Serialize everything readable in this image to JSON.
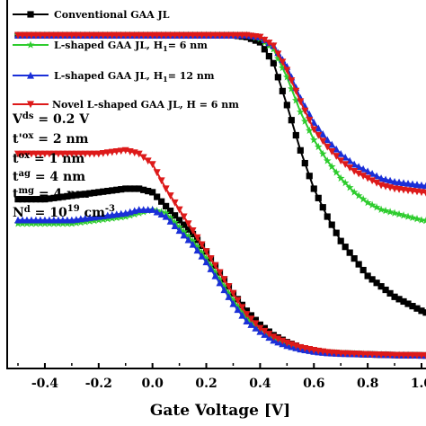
{
  "chart_data": {
    "type": "line",
    "xlabel": "Gate Voltage [V]",
    "ylabel": "",
    "xlim": [
      -0.52,
      1.1
    ],
    "x_ticks": [
      "-0.4",
      "-0.2",
      "0.0",
      "0.2",
      "0.4",
      "0.6",
      "0.8",
      "1.0"
    ],
    "x_tick_values": [
      -0.4,
      -0.2,
      0.0,
      0.2,
      0.4,
      0.6,
      0.8,
      1.0
    ],
    "legend_position": "top-left",
    "annotation_lines": [
      {
        "base": "V",
        "sub": "ds",
        "sup": "",
        "tail": " = 0.2 V"
      },
      {
        "base": "t'",
        "sub": "ox",
        "sup": "",
        "tail": " = 2 nm"
      },
      {
        "base": "t",
        "sub": "ox",
        "sup": "",
        "tail": " = 1 nm"
      },
      {
        "base": "t",
        "sub": "ag",
        "sup": "",
        "tail": " = 4 nm"
      },
      {
        "base": "t",
        "sub": "mg",
        "sup": "",
        "tail": " = 4 nm"
      },
      {
        "base": "N",
        "sub": "d",
        "sup": "19",
        "tail": " = 10",
        "unit": "  cm",
        "unit_sup": "-3"
      }
    ],
    "series": [
      {
        "name": "Conventional GAA JL",
        "color": "#000000",
        "marker": "square",
        "curves": [
          {
            "x": [
              -0.5,
              -0.4,
              -0.3,
              -0.2,
              -0.1,
              -0.05,
              0.0,
              0.05,
              0.1,
              0.15,
              0.2,
              0.25,
              0.3,
              0.35,
              0.4,
              0.45,
              0.5,
              0.55,
              0.6,
              0.65,
              0.7,
              0.8,
              0.9,
              1.0,
              1.1
            ],
            "y": [
              0.47,
              0.47,
              0.48,
              0.49,
              0.5,
              0.5,
              0.49,
              0.45,
              0.41,
              0.37,
              0.32,
              0.26,
              0.2,
              0.15,
              0.11,
              0.08,
              0.06,
              0.045,
              0.035,
              0.03,
              0.028,
              0.025,
              0.023,
              0.022,
              0.02
            ]
          },
          {
            "x": [
              -0.5,
              -0.4,
              -0.3,
              -0.2,
              -0.1,
              0.0,
              0.1,
              0.2,
              0.3,
              0.35,
              0.4,
              0.45,
              0.5,
              0.55,
              0.6,
              0.65,
              0.7,
              0.75,
              0.8,
              0.85,
              0.9,
              0.95,
              1.0,
              1.1
            ],
            "y": [
              0.94,
              0.94,
              0.94,
              0.94,
              0.94,
              0.94,
              0.94,
              0.94,
              0.94,
              0.935,
              0.92,
              0.86,
              0.74,
              0.61,
              0.5,
              0.42,
              0.35,
              0.3,
              0.25,
              0.22,
              0.19,
              0.17,
              0.15,
              0.12
            ]
          }
        ]
      },
      {
        "name": "L-shaped GAA JL, H1 = 6 nm",
        "legend_base": "L-shaped GAA JL, H",
        "legend_sub": "1",
        "legend_tail": "= 6 nm",
        "color": "#2ecc2e",
        "marker": "star",
        "curves": [
          {
            "x": [
              -0.5,
              -0.4,
              -0.3,
              -0.2,
              -0.1,
              -0.05,
              0.0,
              0.05,
              0.1,
              0.15,
              0.2,
              0.25,
              0.3,
              0.35,
              0.4,
              0.45,
              0.5,
              0.55,
              0.6,
              0.65,
              0.7,
              0.8,
              0.9,
              1.0,
              1.1
            ],
            "y": [
              0.4,
              0.4,
              0.4,
              0.41,
              0.42,
              0.43,
              0.44,
              0.43,
              0.39,
              0.35,
              0.3,
              0.24,
              0.18,
              0.13,
              0.09,
              0.07,
              0.05,
              0.04,
              0.035,
              0.03,
              0.028,
              0.025,
              0.023,
              0.022,
              0.021
            ]
          },
          {
            "x": [
              -0.5,
              -0.4,
              -0.3,
              -0.2,
              -0.1,
              0.0,
              0.1,
              0.2,
              0.3,
              0.35,
              0.4,
              0.45,
              0.5,
              0.55,
              0.6,
              0.65,
              0.7,
              0.75,
              0.8,
              0.85,
              0.9,
              0.95,
              1.0,
              1.1
            ],
            "y": [
              0.94,
              0.94,
              0.94,
              0.94,
              0.94,
              0.94,
              0.94,
              0.94,
              0.94,
              0.94,
              0.93,
              0.9,
              0.82,
              0.72,
              0.64,
              0.58,
              0.53,
              0.49,
              0.46,
              0.44,
              0.43,
              0.42,
              0.41,
              0.4
            ]
          }
        ]
      },
      {
        "name": "L-shaped GAA JL, H1 = 12 nm",
        "legend_base": "L-shaped GAA JL, H",
        "legend_sub": "1",
        "legend_tail": "= 12 nm",
        "color": "#1a2fd8",
        "marker": "triangle-up",
        "curves": [
          {
            "x": [
              -0.5,
              -0.4,
              -0.3,
              -0.2,
              -0.1,
              -0.05,
              0.0,
              0.05,
              0.1,
              0.15,
              0.2,
              0.25,
              0.3,
              0.35,
              0.4,
              0.45,
              0.5,
              0.55,
              0.6,
              0.65,
              0.7,
              0.8,
              0.9,
              1.0,
              1.1
            ],
            "y": [
              0.41,
              0.41,
              0.41,
              0.42,
              0.43,
              0.44,
              0.44,
              0.42,
              0.38,
              0.34,
              0.29,
              0.23,
              0.17,
              0.12,
              0.09,
              0.065,
              0.05,
              0.04,
              0.033,
              0.029,
              0.027,
              0.025,
              0.023,
              0.022,
              0.021
            ]
          },
          {
            "x": [
              -0.5,
              -0.4,
              -0.3,
              -0.2,
              -0.1,
              0.0,
              0.1,
              0.2,
              0.3,
              0.35,
              0.4,
              0.45,
              0.5,
              0.55,
              0.6,
              0.65,
              0.7,
              0.75,
              0.8,
              0.85,
              0.9,
              0.95,
              1.0,
              1.1
            ],
            "y": [
              0.94,
              0.94,
              0.94,
              0.94,
              0.94,
              0.94,
              0.94,
              0.94,
              0.94,
              0.94,
              0.935,
              0.91,
              0.85,
              0.76,
              0.69,
              0.64,
              0.6,
              0.57,
              0.55,
              0.53,
              0.52,
              0.515,
              0.51,
              0.5
            ]
          }
        ]
      },
      {
        "name": "Novel L-shaped GAA JL, H = 6 nm",
        "legend_base": "Novel L-shaped GAA JL, H",
        "legend_sub": "",
        "legend_tail": " = 6 nm",
        "color": "#dd1a1a",
        "marker": "triangle-down",
        "curves": [
          {
            "x": [
              -0.5,
              -0.4,
              -0.3,
              -0.2,
              -0.1,
              -0.05,
              0.0,
              0.05,
              0.1,
              0.15,
              0.2,
              0.25,
              0.3,
              0.35,
              0.4,
              0.45,
              0.5,
              0.55,
              0.6,
              0.65,
              0.7,
              0.8,
              0.9,
              1.0,
              1.1
            ],
            "y": [
              0.6,
              0.6,
              0.6,
              0.6,
              0.61,
              0.6,
              0.57,
              0.5,
              0.44,
              0.38,
              0.32,
              0.26,
              0.2,
              0.14,
              0.1,
              0.075,
              0.058,
              0.045,
              0.037,
              0.031,
              0.028,
              0.025,
              0.023,
              0.022,
              0.021
            ]
          },
          {
            "x": [
              -0.5,
              -0.4,
              -0.3,
              -0.2,
              -0.1,
              0.0,
              0.1,
              0.2,
              0.3,
              0.35,
              0.4,
              0.45,
              0.5,
              0.55,
              0.6,
              0.65,
              0.7,
              0.75,
              0.8,
              0.85,
              0.9,
              0.95,
              1.0,
              1.1
            ],
            "y": [
              0.94,
              0.94,
              0.94,
              0.94,
              0.94,
              0.94,
              0.94,
              0.94,
              0.94,
              0.94,
              0.935,
              0.91,
              0.84,
              0.75,
              0.67,
              0.62,
              0.58,
              0.55,
              0.53,
              0.51,
              0.5,
              0.495,
              0.49,
              0.48
            ]
          }
        ]
      }
    ]
  }
}
